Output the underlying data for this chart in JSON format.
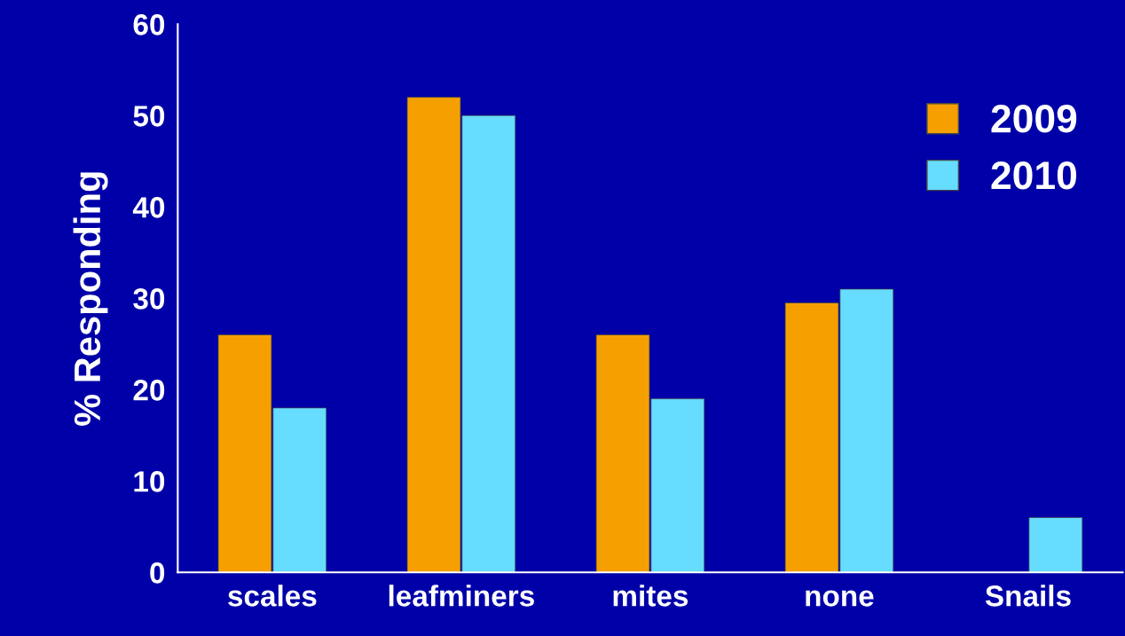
{
  "chart_data": {
    "type": "bar",
    "ylabel": "% Responding",
    "categories": [
      "scales",
      "leafminers",
      "mites",
      "none",
      "Snails"
    ],
    "series": [
      {
        "name": "2009",
        "color": "#f5a000",
        "values": [
          26,
          52,
          26,
          29.5,
          null
        ]
      },
      {
        "name": "2010",
        "color": "#66ddff",
        "values": [
          18,
          50,
          19,
          31,
          6
        ]
      }
    ],
    "ylim": [
      0,
      60
    ],
    "yticks": [
      0,
      10,
      20,
      30,
      40,
      50,
      60
    ],
    "grid": false,
    "legend": "top right"
  }
}
